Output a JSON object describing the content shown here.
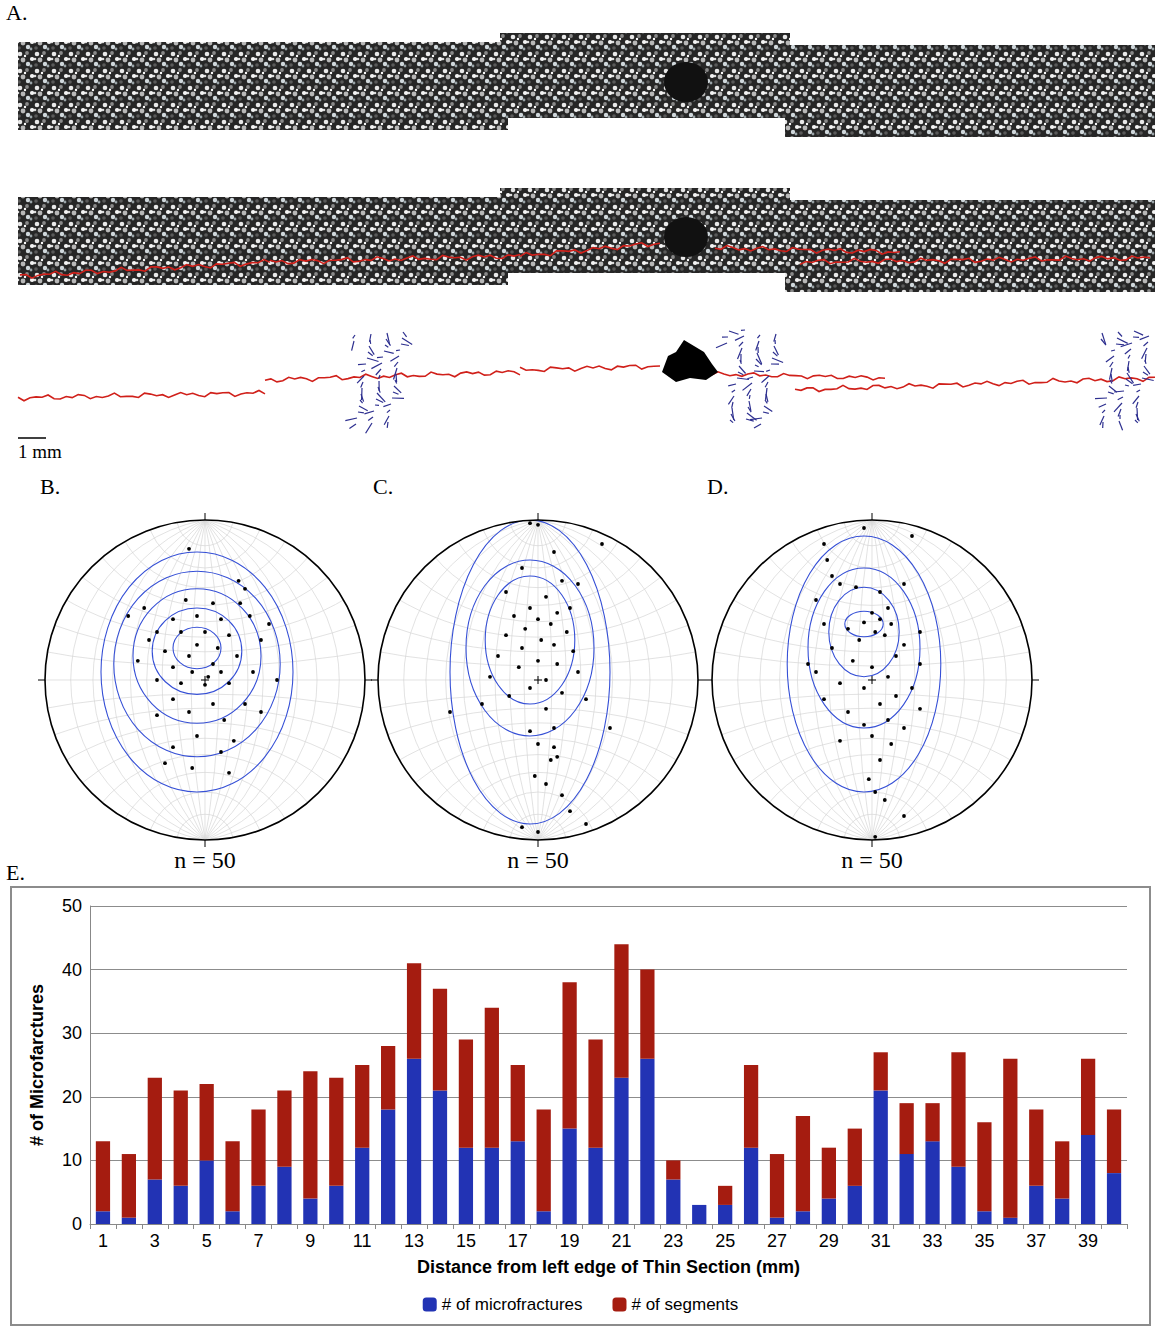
{
  "figure": {
    "panel_a": {
      "label": "A.",
      "scale_bar": "1 mm"
    },
    "panel_e_label": "E.",
    "stereonets": [
      {
        "label": "B.",
        "n_label": "n = 50",
        "great_circle_y": -0.78,
        "contours": [
          [
            -0.05,
            0.2,
            0.15,
            0.13
          ],
          [
            -0.05,
            0.18,
            0.28,
            0.27
          ],
          [
            -0.05,
            0.15,
            0.4,
            0.42
          ],
          [
            -0.05,
            0.1,
            0.52,
            0.58
          ],
          [
            -0.05,
            0.05,
            0.6,
            0.75
          ]
        ],
        "points": [
          [
            -0.1,
            0.82
          ],
          [
            0.21,
            0.62
          ],
          [
            0.25,
            0.57
          ],
          [
            -0.48,
            0.4
          ],
          [
            -0.38,
            0.45
          ],
          [
            -0.12,
            0.5
          ],
          [
            0.05,
            0.48
          ],
          [
            -0.2,
            0.38
          ],
          [
            -0.05,
            0.4
          ],
          [
            0.1,
            0.38
          ],
          [
            -0.3,
            0.3
          ],
          [
            0.28,
            0.4
          ],
          [
            0.35,
            0.25
          ],
          [
            -0.15,
            0.3
          ],
          [
            0,
            0.3
          ],
          [
            0.15,
            0.28
          ],
          [
            -0.05,
            0.22
          ],
          [
            0.08,
            0.2
          ],
          [
            -0.25,
            0.18
          ],
          [
            -0.1,
            0.15
          ],
          [
            0.2,
            0.15
          ],
          [
            0.05,
            0.1
          ],
          [
            -0.2,
            0.08
          ],
          [
            -0.08,
            0.05
          ],
          [
            0.02,
            0.02
          ],
          [
            0.1,
            0.05
          ],
          [
            -0.15,
            -0.02
          ],
          [
            0.15,
            -0.02
          ],
          [
            0,
            -0.03
          ],
          [
            -0.3,
            0
          ],
          [
            0.3,
            0.05
          ],
          [
            -0.42,
            0.12
          ],
          [
            0.45,
            0
          ],
          [
            -0.2,
            -0.12
          ],
          [
            0.05,
            -0.15
          ],
          [
            0.25,
            -0.15
          ],
          [
            -0.1,
            -0.2
          ],
          [
            0.12,
            -0.25
          ],
          [
            -0.3,
            -0.22
          ],
          [
            0.35,
            -0.2
          ],
          [
            -0.05,
            -0.35
          ],
          [
            0.18,
            -0.38
          ],
          [
            -0.2,
            -0.42
          ],
          [
            0.1,
            -0.45
          ],
          [
            -0.08,
            -0.55
          ],
          [
            0.15,
            -0.58
          ],
          [
            -0.25,
            -0.52
          ],
          [
            0.22,
            0.48
          ],
          [
            -0.35,
            0.25
          ],
          [
            0.4,
            0.35
          ]
        ]
      },
      {
        "label": "C.",
        "n_label": "n = 50",
        "great_circle_y": -0.78,
        "contours": [
          [
            -0.05,
            0.25,
            0.28,
            0.4
          ],
          [
            -0.05,
            0.2,
            0.4,
            0.55
          ],
          [
            -0.05,
            0.05,
            0.5,
            0.95
          ]
        ],
        "points": [
          [
            -0.05,
            0.98
          ],
          [
            0,
            0.97
          ],
          [
            0.4,
            0.85
          ],
          [
            0.1,
            0.8
          ],
          [
            -0.1,
            0.7
          ],
          [
            0.15,
            0.62
          ],
          [
            0.25,
            0.6
          ],
          [
            -0.2,
            0.55
          ],
          [
            0.05,
            0.52
          ],
          [
            -0.05,
            0.45
          ],
          [
            0.12,
            0.42
          ],
          [
            -0.15,
            0.4
          ],
          [
            0,
            0.38
          ],
          [
            0.08,
            0.35
          ],
          [
            -0.08,
            0.32
          ],
          [
            0.18,
            0.3
          ],
          [
            -0.2,
            0.28
          ],
          [
            0.02,
            0.25
          ],
          [
            0.1,
            0.22
          ],
          [
            -0.1,
            0.2
          ],
          [
            0.22,
            0.18
          ],
          [
            -0.25,
            0.15
          ],
          [
            0,
            0.12
          ],
          [
            0.12,
            0.1
          ],
          [
            -0.12,
            0.08
          ],
          [
            0.25,
            0.05
          ],
          [
            -0.3,
            0.02
          ],
          [
            0.05,
            0
          ],
          [
            -0.05,
            -0.05
          ],
          [
            0.15,
            -0.08
          ],
          [
            -0.18,
            -0.1
          ],
          [
            0.3,
            -0.12
          ],
          [
            -0.35,
            -0.15
          ],
          [
            0.05,
            -0.18
          ],
          [
            -0.55,
            -0.2
          ],
          [
            0.1,
            -0.3
          ],
          [
            -0.05,
            -0.32
          ],
          [
            0.45,
            -0.3
          ],
          [
            0,
            -0.4
          ],
          [
            0.1,
            -0.42
          ],
          [
            0.12,
            -0.48
          ],
          [
            0.08,
            -0.5
          ],
          [
            -0.02,
            -0.6
          ],
          [
            0.05,
            -0.65
          ],
          [
            0.15,
            -0.72
          ],
          [
            0.2,
            -0.82
          ],
          [
            0.3,
            -0.9
          ],
          [
            0,
            -0.95
          ],
          [
            -0.1,
            -0.92
          ],
          [
            0.2,
            0.45
          ]
        ]
      },
      {
        "label": "D.",
        "n_label": "n = 50",
        "great_circle_y": -0.8,
        "contours": [
          [
            -0.05,
            0.35,
            0.12,
            0.08
          ],
          [
            -0.05,
            0.3,
            0.22,
            0.28
          ],
          [
            -0.05,
            0.2,
            0.35,
            0.5
          ],
          [
            -0.05,
            0.1,
            0.48,
            0.8
          ]
        ],
        "points": [
          [
            -0.05,
            0.95
          ],
          [
            0.25,
            0.9
          ],
          [
            -0.3,
            0.85
          ],
          [
            -0.28,
            0.75
          ],
          [
            -0.25,
            0.65
          ],
          [
            -0.2,
            0.6
          ],
          [
            -0.1,
            0.58
          ],
          [
            0.05,
            0.55
          ],
          [
            -0.35,
            0.5
          ],
          [
            0.1,
            0.45
          ],
          [
            0,
            0.42
          ],
          [
            0.05,
            0.38
          ],
          [
            -0.05,
            0.36
          ],
          [
            0.12,
            0.35
          ],
          [
            -0.15,
            0.32
          ],
          [
            0.02,
            0.3
          ],
          [
            0.08,
            0.28
          ],
          [
            -0.08,
            0.25
          ],
          [
            0.2,
            0.22
          ],
          [
            -0.25,
            0.2
          ],
          [
            0.15,
            0.15
          ],
          [
            -0.12,
            0.12
          ],
          [
            0.3,
            0.1
          ],
          [
            0,
            0.08
          ],
          [
            -0.35,
            0.05
          ],
          [
            0.1,
            0.02
          ],
          [
            -0.2,
            -0.02
          ],
          [
            0.25,
            -0.05
          ],
          [
            -0.05,
            -0.05
          ],
          [
            0.15,
            -0.1
          ],
          [
            -0.3,
            -0.12
          ],
          [
            0.05,
            -0.15
          ],
          [
            0.3,
            -0.18
          ],
          [
            -0.15,
            -0.2
          ],
          [
            0.1,
            -0.25
          ],
          [
            -0.05,
            -0.28
          ],
          [
            0.2,
            -0.3
          ],
          [
            0,
            -0.35
          ],
          [
            -0.2,
            -0.38
          ],
          [
            0.12,
            -0.4
          ],
          [
            0.05,
            -0.5
          ],
          [
            -0.02,
            -0.62
          ],
          [
            0.02,
            -0.7
          ],
          [
            0.08,
            -0.75
          ],
          [
            0.2,
            -0.85
          ],
          [
            0.02,
            -0.98
          ],
          [
            -0.3,
            0.35
          ],
          [
            0.3,
            0.3
          ],
          [
            -0.4,
            0.1
          ],
          [
            0.2,
            0.6
          ]
        ]
      }
    ]
  },
  "chart_data": {
    "type": "bar",
    "stacked": true,
    "x_label": "Distance from left edge of Thin Section (mm)",
    "y_label": "# of Microfarctures",
    "categories": [
      "1",
      null,
      "3",
      null,
      "5",
      null,
      "7",
      null,
      "9",
      null,
      "11",
      null,
      "13",
      null,
      "15",
      null,
      "17",
      null,
      "19",
      null,
      "21",
      null,
      "23",
      null,
      "25",
      null,
      "27",
      null,
      "29",
      null,
      "31",
      null,
      "33",
      null,
      "35",
      null,
      "37",
      null,
      "39",
      null
    ],
    "series": [
      {
        "name": "# of microfractures",
        "color": "#2233b4",
        "values": [
          2,
          1,
          7,
          6,
          10,
          2,
          6,
          9,
          4,
          6,
          12,
          18,
          26,
          21,
          12,
          12,
          13,
          2,
          15,
          12,
          23,
          26,
          7,
          3,
          3,
          12,
          1,
          2,
          4,
          6,
          21,
          11,
          13,
          9,
          2,
          1,
          6,
          4,
          14,
          8
        ]
      },
      {
        "name": "# of segments",
        "color": "#a51c10",
        "values": [
          11,
          10,
          16,
          15,
          12,
          11,
          12,
          12,
          20,
          17,
          13,
          10,
          15,
          16,
          17,
          22,
          12,
          16,
          23,
          17,
          21,
          14,
          3,
          0,
          3,
          13,
          10,
          15,
          8,
          9,
          6,
          8,
          6,
          18,
          14,
          25,
          12,
          9,
          12,
          10
        ]
      }
    ],
    "ylim": [
      0,
      50
    ],
    "yticks": [
      0,
      10,
      20,
      30,
      40,
      50
    ],
    "grid": true,
    "legend": "bottom"
  }
}
